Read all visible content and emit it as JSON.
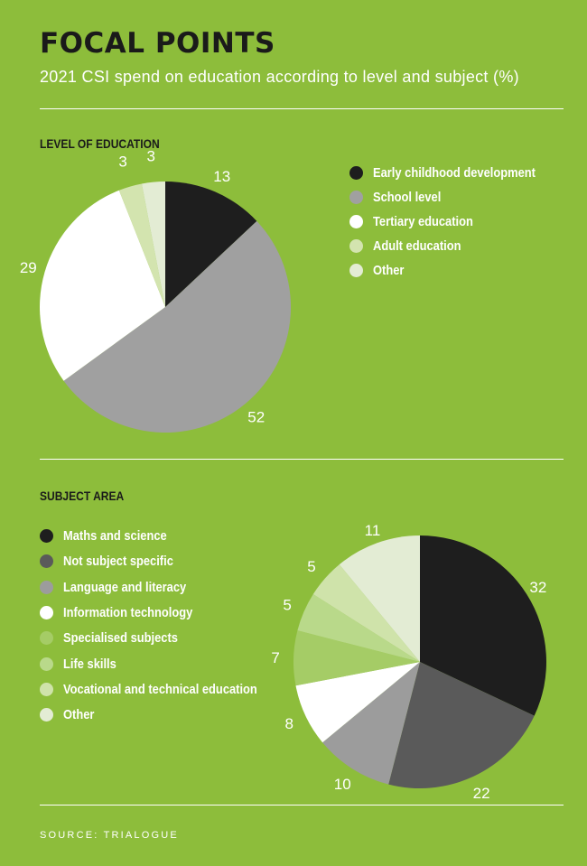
{
  "header": {
    "title": "FOCAL POINTS",
    "subtitle": "2021 CSI spend on education according to level and subject (%)"
  },
  "source": "SOURCE: TRIALOGUE",
  "chart_data": [
    {
      "type": "pie",
      "title": "LEVEL OF EDUCATION",
      "legend_position": "right",
      "categories": [
        "Early childhood development",
        "School level",
        "Tertiary education",
        "Adult education",
        "Other"
      ],
      "values": [
        13,
        52,
        29,
        3,
        3
      ],
      "colors": [
        "#1e1e1e",
        "#a0a0a0",
        "#ffffff",
        "#d3e4af",
        "#e3ecd4"
      ]
    },
    {
      "type": "pie",
      "title": "SUBJECT AREA",
      "legend_position": "left",
      "categories": [
        "Maths and science",
        "Not subject specific",
        "Language and literacy",
        "Information technology",
        "Specialised subjects",
        "Life skills",
        "Vocational and technical education",
        "Other"
      ],
      "values": [
        32,
        22,
        10,
        8,
        7,
        5,
        5,
        11
      ],
      "data_labels": [
        "32",
        "22",
        "10",
        "8",
        "7",
        "5",
        "5",
        "11"
      ],
      "colors": [
        "#1e1e1e",
        "#5a5a5a",
        "#9c9c9c",
        "#ffffff",
        "#a5cc66",
        "#b9d98a",
        "#cfe3aa",
        "#e3ecd4"
      ]
    }
  ]
}
